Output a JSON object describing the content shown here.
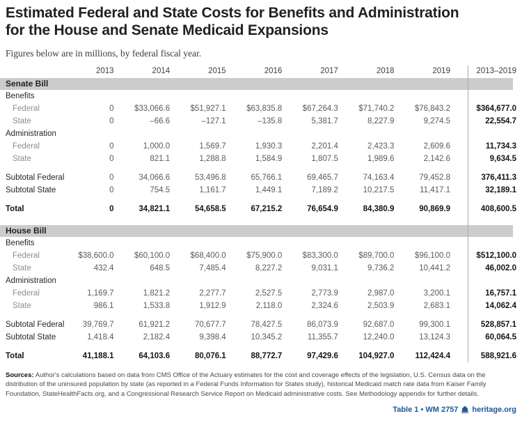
{
  "title": {
    "line1": "Estimated Federal and State Costs for Benefits and Administration",
    "line2": "for the House and Senate Medicaid Expansions"
  },
  "subtitle": "Figures below are in millions, by federal fiscal year.",
  "colors": {
    "accent_blue": "#1d5797",
    "band_gray": "#cbcccd",
    "divider_gray": "#a8aaac"
  },
  "table": {
    "year_headers": [
      "2013",
      "2014",
      "2015",
      "2016",
      "2017",
      "2018",
      "2019"
    ],
    "total_header": "2013–2019",
    "sections": [
      {
        "label": "Senate Bill",
        "rows": [
          {
            "type": "group",
            "label": "Benefits"
          },
          {
            "type": "data",
            "label": "Federal",
            "values": [
              "0",
              "$33,066.6",
              "$51,927.1",
              "$63,835.8",
              "$67,264.3",
              "$71,740.2",
              "$76,843.2"
            ],
            "total": "$364,677.0"
          },
          {
            "type": "data",
            "label": "State",
            "values": [
              "0",
              "–66.6",
              "–127.1",
              "–135.8",
              "5,381.7",
              "8,227.9",
              "9,274.5"
            ],
            "total": "22,554.7"
          },
          {
            "type": "group",
            "label": "Administration"
          },
          {
            "type": "data",
            "label": "Federal",
            "values": [
              "0",
              "1,000.0",
              "1,569.7",
              "1,930.3",
              "2,201.4",
              "2,423.3",
              "2,609.6"
            ],
            "total": "11,734.3"
          },
          {
            "type": "data",
            "label": "State",
            "values": [
              "0",
              "821.1",
              "1,288.8",
              "1,584.9",
              "1,807.5",
              "1,989.6",
              "2,142.6"
            ],
            "total": "9,634.5"
          },
          {
            "type": "gap"
          },
          {
            "type": "subtotal",
            "label": "Subtotal Federal",
            "values": [
              "0",
              "34,066.6",
              "53,496.8",
              "65,766.1",
              "69,465.7",
              "74,163.4",
              "79,452.8"
            ],
            "total": "376,411.3"
          },
          {
            "type": "subtotal",
            "label": "Subtotal State",
            "values": [
              "0",
              "754.5",
              "1,161.7",
              "1,449.1",
              "7,189.2",
              "10,217.5",
              "11,417.1"
            ],
            "total": "32,189.1"
          },
          {
            "type": "gap"
          },
          {
            "type": "total",
            "label": "Total",
            "values": [
              "0",
              "34,821.1",
              "54,658.5",
              "67,215.2",
              "76,654.9",
              "84,380.9",
              "90,869.9"
            ],
            "total": "408,600.5"
          }
        ]
      },
      {
        "label": "House Bill",
        "rows": [
          {
            "type": "group",
            "label": "Benefits"
          },
          {
            "type": "data",
            "label": "Federal",
            "values": [
              "$38,600.0",
              "$60,100.0",
              "$68,400.0",
              "$75,900.0",
              "$83,300.0",
              "$89,700.0",
              "$96,100.0"
            ],
            "total": "$512,100.0"
          },
          {
            "type": "data",
            "label": "State",
            "values": [
              "432.4",
              "648.5",
              "7,485.4",
              "8,227.2",
              "9,031.1",
              "9,736.2",
              "10,441.2"
            ],
            "total": "46,002.0"
          },
          {
            "type": "group",
            "label": "Administration"
          },
          {
            "type": "data",
            "label": "Federal",
            "values": [
              "1,169.7",
              "1,821.2",
              "2,277.7",
              "2,527.5",
              "2,773.9",
              "2,987.0",
              "3,200.1"
            ],
            "total": "16,757.1"
          },
          {
            "type": "data",
            "label": "State",
            "values": [
              "986.1",
              "1,533.8",
              "1,912.9",
              "2,118.0",
              "2,324.6",
              "2,503.9",
              "2,683.1"
            ],
            "total": "14,062.4"
          },
          {
            "type": "gap"
          },
          {
            "type": "subtotal",
            "label": "Subtotal Federal",
            "values": [
              "39,769.7",
              "61,921.2",
              "70,677.7",
              "78,427.5",
              "86,073.9",
              "92,687.0",
              "99,300.1"
            ],
            "total": "528,857.1"
          },
          {
            "type": "subtotal",
            "label": "Subtotal State",
            "values": [
              "1,418.4",
              "2,182.4",
              "9,398.4",
              "10,345.2",
              "11,355.7",
              "12,240.0",
              "13,124.3"
            ],
            "total": "60,064.5"
          },
          {
            "type": "gap"
          },
          {
            "type": "total",
            "label": "Total",
            "values": [
              "41,188.1",
              "64,103.6",
              "80,076.1",
              "88,772.7",
              "97,429.6",
              "104,927.0",
              "112,424.4"
            ],
            "total": "588,921.6"
          }
        ]
      }
    ]
  },
  "sources": {
    "label": "Sources:",
    "text": "Author's calculations based on data from CMS Office of the Actuary estimates for the cost and coverage effects of the legislation, U.S. Census data on the distribution of the uninsured population by state (as reported in a Federal Funds Information for States study), historical Medicaid match rate data from Kaiser Family Foundation, StateHealthFacts.org, and a Congressional Research Service Report on Medicaid administrative costs. See Methodology appendix for further details."
  },
  "footer": {
    "table_ref": "Table 1 • WM 2757",
    "site": "heritage.org",
    "icon": "heritage-bell-icon"
  }
}
